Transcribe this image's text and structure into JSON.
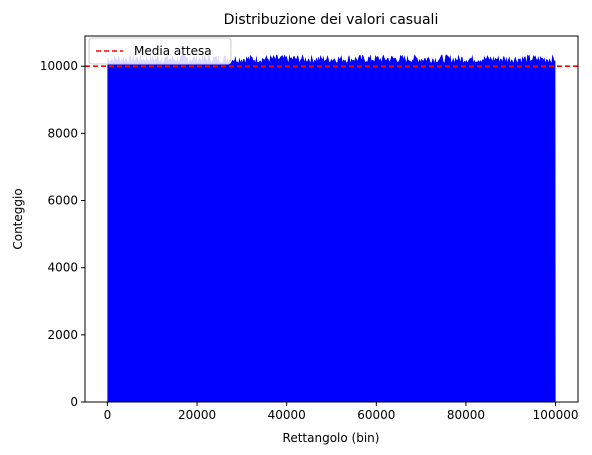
{
  "chart_data": {
    "type": "bar",
    "title": "Distribuzione dei valori casuali",
    "xlabel": "Rettangolo (bin)",
    "ylabel": "Conteggio",
    "xlim": [
      -5000,
      105000
    ],
    "ylim": [
      0,
      10900
    ],
    "xticks": [
      0,
      20000,
      40000,
      60000,
      80000,
      100000
    ],
    "xtick_labels": [
      "0",
      "20000",
      "40000",
      "60000",
      "80000",
      "100000"
    ],
    "yticks": [
      0,
      2000,
      4000,
      6000,
      8000,
      10000
    ],
    "ytick_labels": [
      "0",
      "2000",
      "4000",
      "6000",
      "8000",
      "10000"
    ],
    "grid": false,
    "legend_position": "top-left",
    "bars": {
      "x_start": 0,
      "x_end": 100000,
      "typical_count": 10250,
      "count_range": [
        10100,
        10360
      ],
      "color": "#0000ff"
    },
    "series": [
      {
        "name": "Media attesa",
        "kind": "hline",
        "value": 10000,
        "style": "dashed",
        "color": "#ff0000"
      }
    ]
  }
}
